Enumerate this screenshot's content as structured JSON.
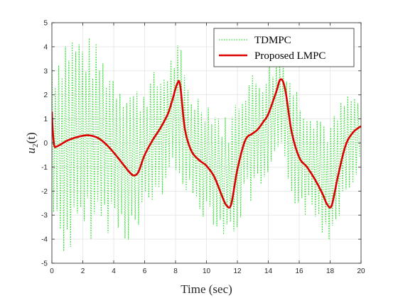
{
  "chart_data": {
    "type": "line",
    "xlabel": "Time (sec)",
    "ylabel_base": "u",
    "ylabel_sub": "2",
    "ylabel_arg": "(t)",
    "xlim": [
      0,
      20
    ],
    "ylim": [
      -5,
      5
    ],
    "xticks": [
      0,
      2,
      4,
      6,
      8,
      10,
      12,
      14,
      16,
      18,
      20
    ],
    "yticks": [
      -5,
      -4,
      -3,
      -2,
      -1,
      0,
      1,
      2,
      3,
      4,
      5
    ],
    "grid": true,
    "legend_position": "top-right",
    "series": [
      {
        "name": "TDMPC",
        "color": "#33dd33",
        "style": "dotted",
        "period": 0.22,
        "envelope": {
          "x": [
            0,
            0.5,
            1,
            2,
            3,
            4,
            5,
            6,
            7,
            8,
            9,
            10,
            11,
            12,
            13,
            14,
            15,
            16,
            17,
            18,
            19,
            20
          ],
          "amplitude": [
            3.5,
            4.5,
            5.0,
            4.5,
            4.0,
            3.5,
            3.5,
            3.0,
            2.8,
            2.8,
            2.6,
            2.6,
            2.6,
            3.0,
            2.8,
            2.8,
            2.6,
            2.6,
            2.6,
            2.6,
            2.2,
            1.6
          ]
        }
      },
      {
        "name": "Proposed LMPC",
        "color": "#dd0000",
        "style": "solid",
        "x": [
          0,
          0.05,
          0.15,
          0.3,
          0.6,
          1.0,
          1.5,
          2.0,
          2.4,
          3.0,
          3.5,
          4.0,
          4.5,
          5.0,
          5.3,
          5.6,
          6.0,
          6.5,
          7.0,
          7.5,
          7.8,
          8.1,
          8.3,
          8.6,
          9.0,
          9.5,
          10.0,
          10.5,
          11.0,
          11.3,
          11.6,
          12.0,
          12.5,
          13.0,
          13.3,
          13.7,
          14.0,
          14.5,
          14.8,
          15.1,
          15.5,
          16.0,
          16.5,
          17.0,
          17.5,
          17.8,
          18.1,
          18.5,
          19.0,
          19.5,
          20.0
        ],
        "values": [
          1.3,
          0.6,
          -0.1,
          -0.15,
          -0.05,
          0.1,
          0.22,
          0.3,
          0.32,
          0.2,
          -0.05,
          -0.4,
          -0.8,
          -1.2,
          -1.35,
          -1.2,
          -0.5,
          0.1,
          0.6,
          1.2,
          1.8,
          2.45,
          2.4,
          0.6,
          -0.3,
          -0.7,
          -0.95,
          -1.4,
          -2.2,
          -2.6,
          -2.55,
          -1.1,
          0.1,
          0.4,
          0.55,
          0.9,
          1.2,
          2.1,
          2.65,
          2.2,
          0.5,
          -0.6,
          -1.0,
          -1.5,
          -2.1,
          -2.55,
          -2.6,
          -1.4,
          -0.1,
          0.45,
          0.7
        ]
      }
    ]
  }
}
